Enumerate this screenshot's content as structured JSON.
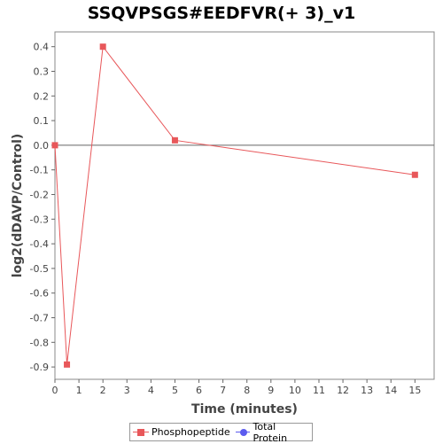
{
  "chart_data": {
    "type": "line",
    "title": "SSQVPSGS#EEDFVR(+ 3)_v1",
    "xlabel": "Time (minutes)",
    "ylabel": "log2(dDAVP/Control)",
    "xlim": [
      0,
      15.8
    ],
    "ylim": [
      -0.95,
      0.46
    ],
    "xticks": [
      0,
      1,
      2,
      3,
      4,
      5,
      6,
      7,
      8,
      9,
      10,
      11,
      12,
      13,
      14,
      15
    ],
    "yticks": [
      0.4,
      0.3,
      0.2,
      0.1,
      0.0,
      -0.1,
      -0.2,
      -0.3,
      -0.4,
      -0.5,
      -0.6,
      -0.7,
      -0.8,
      -0.9
    ],
    "ytick_labels": [
      "0.4",
      "0.3",
      "0.2",
      "0.1",
      "0.0",
      "-0.1",
      "-0.2",
      "-0.3",
      "-0.4",
      "-0.5",
      "-0.6",
      "-0.7",
      "-0.8",
      "-0.9"
    ],
    "series": [
      {
        "name": "Phosphopeptide",
        "color": "#e8575a",
        "marker": "square",
        "x": [
          0,
          0.5,
          2,
          5,
          15
        ],
        "y": [
          0.0,
          -0.89,
          0.4,
          0.02,
          -0.12
        ]
      },
      {
        "name": "Total Protein",
        "color": "#5b5bef",
        "marker": "circle",
        "x": [],
        "y": []
      }
    ],
    "grid": false,
    "legend_position": "bottom-center",
    "zero_line": true
  }
}
